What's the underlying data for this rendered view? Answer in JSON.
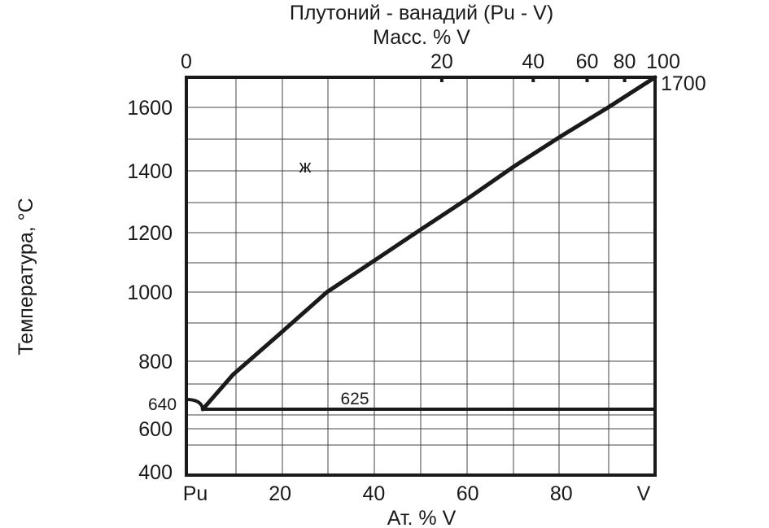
{
  "chart_data": {
    "type": "line",
    "title": "Плутоний - ванадий (Pu - V)",
    "top_axis_label": "Масс. % V",
    "xlabel": "Ат. % V",
    "ylabel": "Температура,  °С",
    "xlim": [
      0,
      100
    ],
    "ylim_note": "non-uniform vertical scale: 400 to 1700",
    "x_ticks": [
      {
        "value": 0,
        "label": "Pu"
      },
      {
        "value": 20,
        "label": "20"
      },
      {
        "value": 40,
        "label": "40"
      },
      {
        "value": 60,
        "label": "60"
      },
      {
        "value": 80,
        "label": "80"
      },
      {
        "value": 100,
        "label": "V"
      }
    ],
    "y_ticks": [
      {
        "value": 400,
        "label": "400"
      },
      {
        "value": 600,
        "label": "600"
      },
      {
        "value": 800,
        "label": "800"
      },
      {
        "value": 1000,
        "label": "1000"
      },
      {
        "value": 1200,
        "label": "1200"
      },
      {
        "value": 1400,
        "label": "1400"
      },
      {
        "value": 1600,
        "label": "1600"
      }
    ],
    "top_ticks": [
      {
        "value": 0,
        "at_percent": 0,
        "label": "0"
      },
      {
        "value": 20,
        "at_percent": 54.5,
        "label": "20"
      },
      {
        "value": 40,
        "at_percent": 74,
        "label": "40"
      },
      {
        "value": 60,
        "at_percent": 85.5,
        "label": "60"
      },
      {
        "value": 80,
        "at_percent": 93.5,
        "label": "80"
      },
      {
        "value": 100,
        "at_percent": 100,
        "label": "100"
      }
    ],
    "grid": true,
    "series": [
      {
        "x": [
          3.5,
          10,
          20,
          30,
          40,
          50,
          60,
          70,
          80,
          90,
          100
        ],
        "y": [
          625,
          745,
          880,
          1000,
          1105,
          1210,
          1310,
          1415,
          1510,
          1600,
          1700
        ]
      },
      {
        "x": [
          3.5,
          100
        ],
        "y": [
          625,
          625
        ]
      },
      {
        "x": [
          0,
          1.5,
          3.5
        ],
        "y": [
          640,
          635,
          625
        ]
      }
    ],
    "annotations": [
      {
        "text": "ж",
        "x": 25,
        "y": 1420
      },
      {
        "text": "625",
        "x": 36,
        "y": 650
      },
      {
        "text": "640",
        "x": 0,
        "y": 640
      },
      {
        "text": "1700",
        "x": 100,
        "y": 1700
      }
    ]
  }
}
